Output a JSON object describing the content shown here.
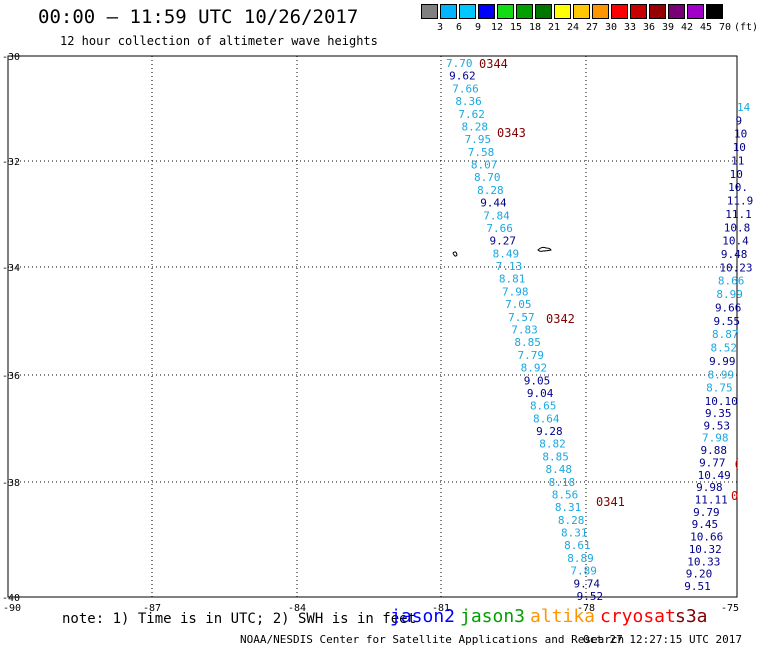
{
  "header": {
    "title": "00:00 – 11:59 UTC 10/26/2017",
    "subtitle": "12 hour collection of altimeter wave heights"
  },
  "legend": {
    "colors": [
      "#808080",
      "#00b4ff",
      "#00c8ff",
      "#0000ff",
      "#14dc14",
      "#00a000",
      "#007800",
      "#ffff00",
      "#ffc800",
      "#ff9600",
      "#ff0000",
      "#c80000",
      "#960000",
      "#780078",
      "#a000c8",
      "#000000"
    ],
    "labels": [
      "3",
      "6",
      "9",
      "12",
      "15",
      "18",
      "21",
      "24",
      "27",
      "30",
      "33",
      "36",
      "39",
      "42",
      "45",
      "70",
      "(ft)"
    ]
  },
  "map": {
    "lon_ticks": [
      "-90",
      "-87",
      "-84",
      "-81",
      "-78",
      "-75"
    ],
    "lat_ticks": [
      "-30",
      "-32",
      "-34",
      "-36",
      "-38",
      "-40"
    ],
    "color_light": "#1aa8e0",
    "color_dark": "#00008b",
    "color_time": "#800000",
    "color_red": "#cc0000",
    "track_west": [
      {
        "t": "7.70",
        "c": "l"
      },
      {
        "t": "9.62",
        "c": "d"
      },
      {
        "t": "7.66",
        "c": "l"
      },
      {
        "t": "8.36",
        "c": "l"
      },
      {
        "t": "7.62",
        "c": "l"
      },
      {
        "t": "8.28",
        "c": "l"
      },
      {
        "t": "7.95",
        "c": "l"
      },
      {
        "t": "7.58",
        "c": "l"
      },
      {
        "t": "8.07",
        "c": "l"
      },
      {
        "t": "8.70",
        "c": "l"
      },
      {
        "t": "8.28",
        "c": "l"
      },
      {
        "t": "9.44",
        "c": "d"
      },
      {
        "t": "7.84",
        "c": "l"
      },
      {
        "t": "7.66",
        "c": "l"
      },
      {
        "t": "9.27",
        "c": "d"
      },
      {
        "t": "8.49",
        "c": "l"
      },
      {
        "t": "7.13",
        "c": "l"
      },
      {
        "t": "8.81",
        "c": "l"
      },
      {
        "t": "7.98",
        "c": "l"
      },
      {
        "t": "7.05",
        "c": "l"
      },
      {
        "t": "7.57",
        "c": "l"
      },
      {
        "t": "7.83",
        "c": "l"
      },
      {
        "t": "8.85",
        "c": "l"
      },
      {
        "t": "7.79",
        "c": "l"
      },
      {
        "t": "8.92",
        "c": "l"
      },
      {
        "t": "9.05",
        "c": "d"
      },
      {
        "t": "9.04",
        "c": "d"
      },
      {
        "t": "8.65",
        "c": "l"
      },
      {
        "t": "8.64",
        "c": "l"
      },
      {
        "t": "9.28",
        "c": "d"
      },
      {
        "t": "8.82",
        "c": "l"
      },
      {
        "t": "8.85",
        "c": "l"
      },
      {
        "t": "8.48",
        "c": "l"
      },
      {
        "t": "8.18",
        "c": "l"
      },
      {
        "t": "8.56",
        "c": "l"
      },
      {
        "t": "8.31",
        "c": "l"
      },
      {
        "t": "8.28",
        "c": "l"
      },
      {
        "t": "8.31",
        "c": "l"
      },
      {
        "t": "8.61",
        "c": "l"
      },
      {
        "t": "8.89",
        "c": "l"
      },
      {
        "t": "7.89",
        "c": "l"
      },
      {
        "t": "9.74",
        "c": "d"
      },
      {
        "t": "9.52",
        "c": "d"
      }
    ],
    "time_labels": [
      "0344",
      "0343",
      "0342",
      "0341"
    ],
    "track_east_upper": [
      {
        "t": "14",
        "c": "l"
      },
      {
        "t": "9",
        "c": "d"
      },
      {
        "t": "10",
        "c": "d"
      },
      {
        "t": "10",
        "c": "d"
      },
      {
        "t": "11",
        "c": "d"
      },
      {
        "t": "10",
        "c": "d"
      },
      {
        "t": "10.",
        "c": "d"
      },
      {
        "t": "11.9",
        "c": "d"
      },
      {
        "t": "11.1",
        "c": "d"
      },
      {
        "t": "10.8",
        "c": "d"
      },
      {
        "t": "10.4",
        "c": "d"
      },
      {
        "t": "9.48",
        "c": "d"
      },
      {
        "t": "10.23",
        "c": "d"
      },
      {
        "t": "8.66",
        "c": "l"
      },
      {
        "t": "8.99",
        "c": "l"
      },
      {
        "t": "9.66",
        "c": "d"
      },
      {
        "t": "9.55",
        "c": "d"
      },
      {
        "t": "8.87",
        "c": "l"
      },
      {
        "t": "8.52",
        "c": "l"
      },
      {
        "t": "9.99",
        "c": "d"
      },
      {
        "t": "8.99",
        "c": "l"
      },
      {
        "t": "8.75",
        "c": "l"
      },
      {
        "t": "10.10",
        "c": "d"
      }
    ],
    "track_east_lower": [
      {
        "t": "9.35",
        "c": "d"
      },
      {
        "t": "9.53",
        "c": "d"
      },
      {
        "t": "7.98",
        "c": "l"
      },
      {
        "t": "9.88",
        "c": "d"
      },
      {
        "t": "9.77",
        "c": "d"
      },
      {
        "t": "10.49",
        "c": "d"
      },
      {
        "t": "9.98",
        "c": "d"
      },
      {
        "t": "11.11",
        "c": "d"
      },
      {
        "t": "9.79",
        "c": "d"
      },
      {
        "t": "9.45",
        "c": "d"
      },
      {
        "t": "10.66",
        "c": "d"
      },
      {
        "t": "10.32",
        "c": "d"
      },
      {
        "t": "10.33",
        "c": "d"
      },
      {
        "t": "9.20",
        "c": "d"
      },
      {
        "t": "9.51",
        "c": "d"
      }
    ],
    "edge_marks": [
      "(",
      "0"
    ]
  },
  "footer": {
    "note": "note: 1) Time is in UTC; 2) SWH is in feet",
    "satellites": [
      {
        "name": "jason2",
        "color": "#0000ff"
      },
      {
        "name": "jason3",
        "color": "#00a000"
      },
      {
        "name": "altika",
        "color": "#ff9600"
      },
      {
        "name": "cryosat",
        "color": "#ff0000"
      },
      {
        "name": "s3a",
        "color": "#800000"
      }
    ],
    "credit": "NOAA/NESDIS Center for Satellite Applications and Research",
    "timestamp": "Oct 27 12:27:15 UTC 2017"
  }
}
